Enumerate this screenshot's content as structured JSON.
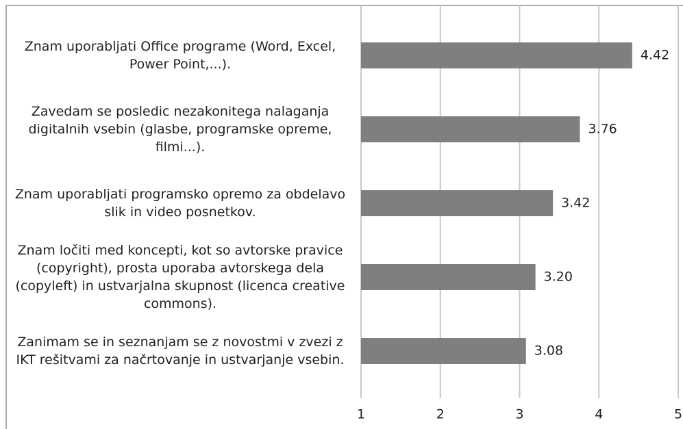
{
  "chart_data": {
    "type": "bar",
    "categories": [
      "Znam uporabljati Office programe (Word, Excel, Power Point,...).",
      "Zavedam se posledic nezakonitega nalaganja digitalnih vsebin (glasbe, programske opreme, filmi...).",
      "Znam uporabljati programsko opremo za obdelavo slik in video posnetkov.",
      "Znam ločiti med koncepti, kot so avtorske pravice (copyright), prosta uporaba avtorskega dela (copyleft) in ustvarjalna skupnost (licenca creative commons).",
      "Zanimam se in seznanjam se z novostmi v zvezi z IKT rešitvami za načrtovanje in ustvarjanje vsebin."
    ],
    "values": [
      4.42,
      3.76,
      3.42,
      3.2,
      3.08
    ],
    "value_labels": [
      "4.42",
      "3.76",
      "3.42",
      "3.20",
      "3.08"
    ],
    "color": "#7f7f7f",
    "xlim": [
      1,
      5
    ],
    "xticks": [
      1,
      2,
      3,
      4,
      5
    ],
    "grid": true
  }
}
